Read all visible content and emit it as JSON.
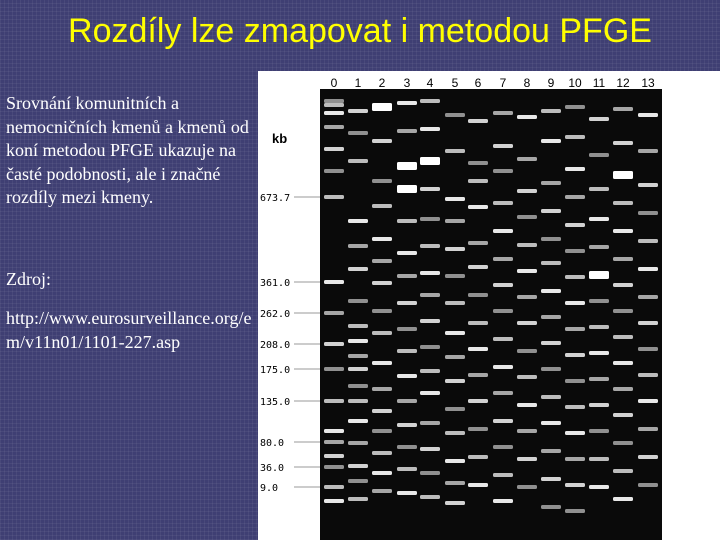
{
  "slide": {
    "title": "Rozdíly lze zmapovat i metodou PFGE",
    "paragraphs": [
      "Srovnání komunitních a nemocničních kmenů a kmenů od koní metodou PFGE ukazuje na časté podobnosti, ale i značné rozdíly mezi kmeny.",
      "Zdroj:",
      "http://www.eurosurveillance.org/em/v11n01/1101-227.asp"
    ]
  },
  "gel": {
    "lane_labels": [
      "0",
      "1",
      "2",
      "3",
      "4",
      "5",
      "6",
      "7",
      "8",
      "9",
      "10",
      "11",
      "12",
      "13"
    ],
    "unit_label": "kb",
    "marker_sizes": [
      "673.7",
      "361.0",
      "262.0",
      "208.0",
      "175.0",
      "135.0",
      "80.0",
      "36.0",
      "9.0"
    ],
    "colors": {
      "gel_background": "#0a0a0a",
      "band": "#ffffff",
      "marker_line": "#9a9a9a",
      "text": "#000000"
    }
  }
}
